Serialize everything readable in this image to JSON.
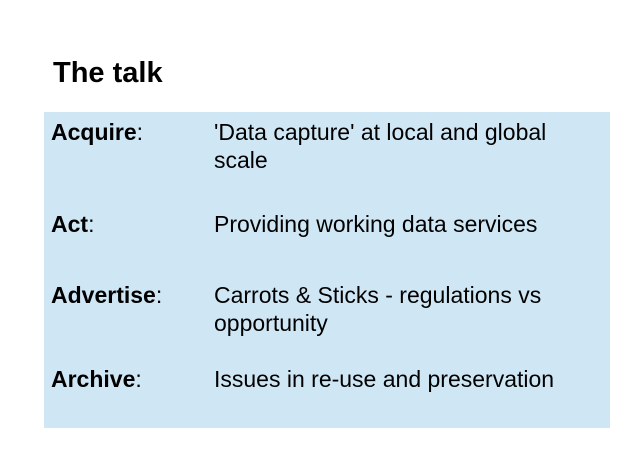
{
  "slide": {
    "title": "The talk",
    "colors": {
      "panel_background": "#cfe7f5",
      "text": "#000000"
    },
    "rows": [
      {
        "term": "Acquire",
        "separator": ":",
        "definition": "'Data capture' at local and global scale"
      },
      {
        "term": "Act",
        "separator": ":",
        "definition": "Providing working data services"
      },
      {
        "term": "Advertise",
        "separator": ":",
        "definition": "Carrots & Sticks - regulations vs opportunity"
      },
      {
        "term": "Archive",
        "separator": ":",
        "definition": "Issues in re-use and preservation"
      }
    ]
  }
}
